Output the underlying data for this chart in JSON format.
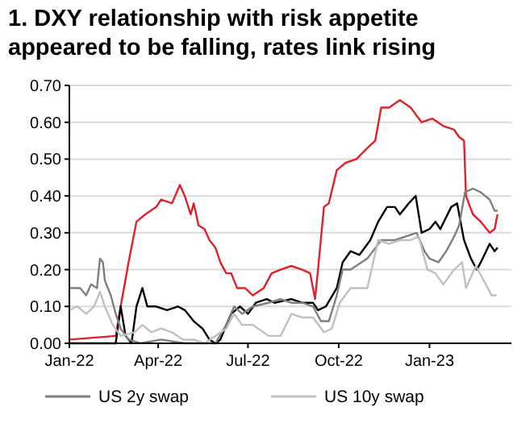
{
  "chart_data": {
    "type": "line",
    "title": "1. DXY relationship with risk appetite appeared to be falling, rates link rising",
    "xlim": [
      "2022-01-01",
      "2023-03-25"
    ],
    "xticks": [
      {
        "value": "2022-01-01",
        "label": "Jan-22"
      },
      {
        "value": "2022-04-01",
        "label": "Apr-22"
      },
      {
        "value": "2022-07-01",
        "label": "Jul-22"
      },
      {
        "value": "2022-10-01",
        "label": "Oct-22"
      },
      {
        "value": "2023-01-01",
        "label": "Jan-23"
      }
    ],
    "ylim": [
      0,
      0.7
    ],
    "yticks": [
      {
        "value": 0,
        "label": "0.00"
      },
      {
        "value": 0.1,
        "label": "0.10"
      },
      {
        "value": 0.2,
        "label": "0.20"
      },
      {
        "value": 0.3,
        "label": "0.30"
      },
      {
        "value": 0.4,
        "label": "0.40"
      },
      {
        "value": 0.5,
        "label": "0.50"
      },
      {
        "value": 0.6,
        "label": "0.60"
      },
      {
        "value": 0.7,
        "label": "0.70"
      }
    ],
    "grid": "y",
    "legend": "bottom",
    "marker": "none",
    "line_style": "solid",
    "series": [
      {
        "color": "#e0202a",
        "x": [
          "2022-01-01",
          "2022-02-17",
          "2022-02-22",
          "2022-03-02",
          "2022-03-10",
          "2022-03-19",
          "2022-03-30",
          "2022-04-04",
          "2022-04-15",
          "2022-04-23",
          "2022-04-28",
          "2022-05-04",
          "2022-05-07",
          "2022-05-12",
          "2022-05-18",
          "2022-05-23",
          "2022-05-29",
          "2022-06-03",
          "2022-06-09",
          "2022-06-14",
          "2022-06-20",
          "2022-06-28",
          "2022-07-06",
          "2022-07-17",
          "2022-07-25",
          "2022-08-03",
          "2022-08-14",
          "2022-08-25",
          "2022-09-02",
          "2022-09-07",
          "2022-09-10",
          "2022-09-16",
          "2022-09-21",
          "2022-09-29",
          "2022-10-08",
          "2022-10-19",
          "2022-10-30",
          "2022-11-07",
          "2022-11-13",
          "2022-11-21",
          "2022-12-02",
          "2022-12-13",
          "2022-12-24",
          "2023-01-04",
          "2023-01-15",
          "2023-01-26",
          "2023-01-31",
          "2023-02-05",
          "2023-02-07",
          "2023-02-14",
          "2023-02-22",
          "2023-03-03",
          "2023-03-08",
          "2023-03-11"
        ],
        "values": [
          0.01,
          0.02,
          0.1,
          0.22,
          0.33,
          0.35,
          0.37,
          0.39,
          0.38,
          0.43,
          0.4,
          0.35,
          0.38,
          0.32,
          0.31,
          0.28,
          0.26,
          0.22,
          0.19,
          0.19,
          0.15,
          0.15,
          0.13,
          0.15,
          0.19,
          0.2,
          0.21,
          0.2,
          0.19,
          0.12,
          0.2,
          0.37,
          0.38,
          0.47,
          0.49,
          0.5,
          0.53,
          0.55,
          0.64,
          0.64,
          0.66,
          0.64,
          0.6,
          0.61,
          0.59,
          0.58,
          0.56,
          0.55,
          0.4,
          0.35,
          0.33,
          0.3,
          0.31,
          0.35
        ]
      },
      {
        "color": "#000000",
        "x": [
          "2022-01-01",
          "2022-02-17",
          "2022-02-22",
          "2022-02-27",
          "2022-03-05",
          "2022-03-10",
          "2022-03-16",
          "2022-03-21",
          "2022-03-30",
          "2022-04-10",
          "2022-04-21",
          "2022-04-28",
          "2022-05-07",
          "2022-05-16",
          "2022-05-23",
          "2022-05-29",
          "2022-06-03",
          "2022-06-09",
          "2022-06-14",
          "2022-06-23",
          "2022-07-01",
          "2022-07-09",
          "2022-07-20",
          "2022-07-28",
          "2022-08-14",
          "2022-08-25",
          "2022-09-05",
          "2022-09-10",
          "2022-09-18",
          "2022-09-29",
          "2022-10-05",
          "2022-10-13",
          "2022-10-22",
          "2022-11-02",
          "2022-11-10",
          "2022-11-19",
          "2022-11-27",
          "2022-12-02",
          "2022-12-11",
          "2022-12-18",
          "2022-12-24",
          "2023-01-01",
          "2023-01-07",
          "2023-01-12",
          "2023-01-23",
          "2023-01-29",
          "2023-02-05",
          "2023-02-12",
          "2023-02-18",
          "2023-02-22",
          "2023-03-03",
          "2023-03-08",
          "2023-03-11"
        ],
        "values": [
          0.0,
          0.0,
          0.1,
          0.02,
          0.0,
          0.1,
          0.15,
          0.1,
          0.1,
          0.09,
          0.1,
          0.09,
          0.06,
          0.04,
          0.01,
          0.0,
          0.01,
          0.05,
          0.08,
          0.1,
          0.08,
          0.11,
          0.12,
          0.11,
          0.12,
          0.11,
          0.11,
          0.09,
          0.1,
          0.15,
          0.22,
          0.25,
          0.24,
          0.28,
          0.33,
          0.37,
          0.37,
          0.35,
          0.38,
          0.4,
          0.3,
          0.31,
          0.33,
          0.31,
          0.37,
          0.38,
          0.28,
          0.23,
          0.2,
          0.22,
          0.27,
          0.25,
          0.26
        ]
      },
      {
        "name": "US 2y swap",
        "color": "#7f7f7f",
        "x": [
          "2022-01-01",
          "2022-01-12",
          "2022-01-18",
          "2022-01-23",
          "2022-01-29",
          "2022-02-01",
          "2022-02-04",
          "2022-02-06",
          "2022-02-12",
          "2022-02-17",
          "2022-02-22",
          "2022-03-02",
          "2022-03-14",
          "2022-04-04",
          "2022-04-28",
          "2022-05-07",
          "2022-05-18",
          "2022-05-29",
          "2022-06-09",
          "2022-06-17",
          "2022-06-25",
          "2022-07-06",
          "2022-07-22",
          "2022-08-03",
          "2022-08-14",
          "2022-08-25",
          "2022-09-05",
          "2022-09-13",
          "2022-09-21",
          "2022-09-29",
          "2022-10-05",
          "2022-10-13",
          "2022-10-30",
          "2022-11-13",
          "2022-11-27",
          "2022-12-08",
          "2022-12-19",
          "2022-12-27",
          "2023-01-01",
          "2023-01-10",
          "2023-01-18",
          "2023-01-26",
          "2023-01-31",
          "2023-02-06",
          "2023-02-14",
          "2023-02-22",
          "2023-03-03",
          "2023-03-08",
          "2023-03-11"
        ],
        "values": [
          0.15,
          0.15,
          0.13,
          0.16,
          0.15,
          0.23,
          0.22,
          0.17,
          0.13,
          0.08,
          0.04,
          0.01,
          0.0,
          0.01,
          0.0,
          0.0,
          0.0,
          0.0,
          0.05,
          0.1,
          0.08,
          0.1,
          0.11,
          0.12,
          0.11,
          0.11,
          0.1,
          0.06,
          0.06,
          0.13,
          0.2,
          0.2,
          0.23,
          0.28,
          0.28,
          0.29,
          0.3,
          0.25,
          0.23,
          0.22,
          0.25,
          0.29,
          0.32,
          0.41,
          0.42,
          0.41,
          0.39,
          0.36,
          0.36
        ]
      },
      {
        "name": "US 10y swap",
        "color": "#c0c0c0",
        "x": [
          "2022-01-01",
          "2022-01-09",
          "2022-01-18",
          "2022-01-26",
          "2022-02-01",
          "2022-02-06",
          "2022-02-14",
          "2022-02-22",
          "2022-03-08",
          "2022-03-16",
          "2022-03-25",
          "2022-04-04",
          "2022-04-15",
          "2022-04-26",
          "2022-05-07",
          "2022-05-18",
          "2022-06-09",
          "2022-06-17",
          "2022-06-25",
          "2022-07-06",
          "2022-07-22",
          "2022-08-03",
          "2022-08-14",
          "2022-08-25",
          "2022-09-05",
          "2022-09-16",
          "2022-09-24",
          "2022-10-02",
          "2022-10-13",
          "2022-10-30",
          "2022-11-10",
          "2022-11-21",
          "2022-12-02",
          "2022-12-13",
          "2022-12-21",
          "2022-12-30",
          "2023-01-07",
          "2023-01-15",
          "2023-01-26",
          "2023-02-03",
          "2023-02-07",
          "2023-02-17",
          "2023-02-25",
          "2023-03-05",
          "2023-03-10"
        ],
        "values": [
          0.09,
          0.1,
          0.08,
          0.1,
          0.14,
          0.1,
          0.05,
          0.02,
          0.03,
          0.05,
          0.03,
          0.04,
          0.03,
          0.01,
          0.01,
          0.0,
          0.04,
          0.08,
          0.05,
          0.05,
          0.02,
          0.02,
          0.08,
          0.07,
          0.07,
          0.03,
          0.04,
          0.11,
          0.15,
          0.15,
          0.28,
          0.27,
          0.28,
          0.28,
          0.29,
          0.2,
          0.19,
          0.16,
          0.2,
          0.22,
          0.15,
          0.21,
          0.17,
          0.13,
          0.13
        ]
      }
    ]
  }
}
